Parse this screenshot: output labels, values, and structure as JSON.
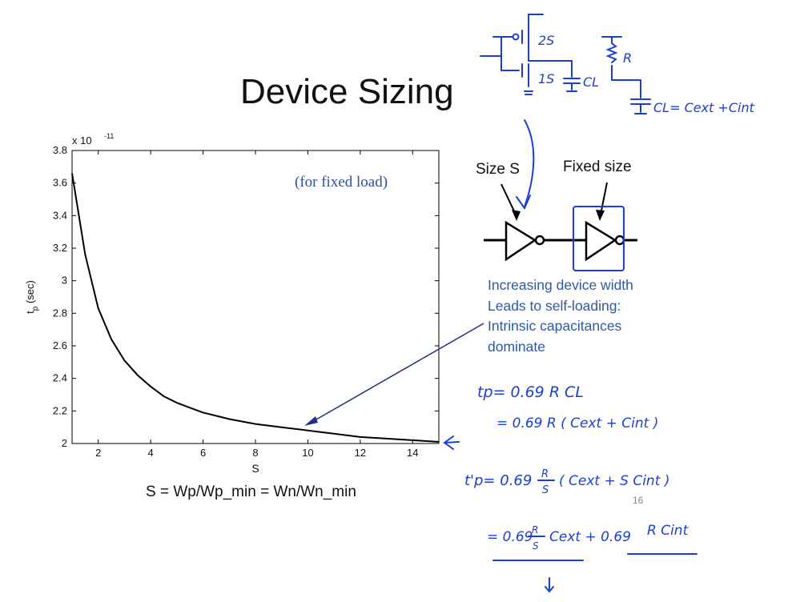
{
  "slide": {
    "title": "Device Sizing",
    "page_number": "16",
    "definition": "S = Wp/Wp_min = Wn/Wn_min",
    "annotation": "(for fixed load)",
    "labels": {
      "size_s": "Size S",
      "fixed_size": "Fixed size"
    },
    "caption_lines": [
      "Increasing device width",
      "Leads to self-loading:",
      "Intrinsic capacitances",
      "dominate"
    ],
    "handwritten": {
      "transistor_pmos": "2S",
      "transistor_nmos": "1S",
      "load_cap": "CL",
      "resistor": "R",
      "cap_formula": "CL= Cext +Cint",
      "eq1": "tp= 0.69 R CL",
      "eq2": "= 0.69 R ( Cext + Cint )",
      "eq3_lhs": "t'p= 0.69",
      "eq3_frac_num": "R",
      "eq3_frac_den": "S",
      "eq3_rhs": "( Cext + S Cint )",
      "eq4_lhs": "= 0.69",
      "eq4_mid": "Cext + 0.69",
      "eq4_rhs": "R Cint"
    },
    "ink_color": "#1a3fd6"
  },
  "chart_data": {
    "type": "line",
    "title": "",
    "xlabel": "S",
    "ylabel": "t_p (sec)",
    "ylabel_main": "t",
    "ylabel_sub": "p",
    "ylabel_unit": "(sec)",
    "y_exponent": "x 10",
    "y_exponent_power": "-11",
    "xlim": [
      1,
      15
    ],
    "ylim": [
      2,
      3.8
    ],
    "x_ticks": [
      2,
      4,
      6,
      8,
      10,
      12,
      14
    ],
    "y_ticks": [
      2,
      2.2,
      2.4,
      2.6,
      2.8,
      3,
      3.2,
      3.4,
      3.6,
      3.8
    ],
    "y_tick_labels": [
      "2",
      "2.2",
      "2.4",
      "2.6",
      "2.8",
      "3",
      "3.2",
      "3.4",
      "3.6",
      "3.8"
    ],
    "grid": false,
    "series": [
      {
        "x": [
          1,
          1.5,
          2,
          2.5,
          3,
          3.5,
          4,
          4.5,
          5,
          5.5,
          6,
          6.5,
          7,
          8,
          9,
          10,
          11,
          12,
          13,
          14,
          15
        ],
        "y": [
          3.66,
          3.16,
          2.83,
          2.64,
          2.51,
          2.42,
          2.35,
          2.29,
          2.25,
          2.22,
          2.19,
          2.17,
          2.15,
          2.12,
          2.1,
          2.08,
          2.06,
          2.04,
          2.03,
          2.02,
          2.01
        ]
      }
    ]
  }
}
